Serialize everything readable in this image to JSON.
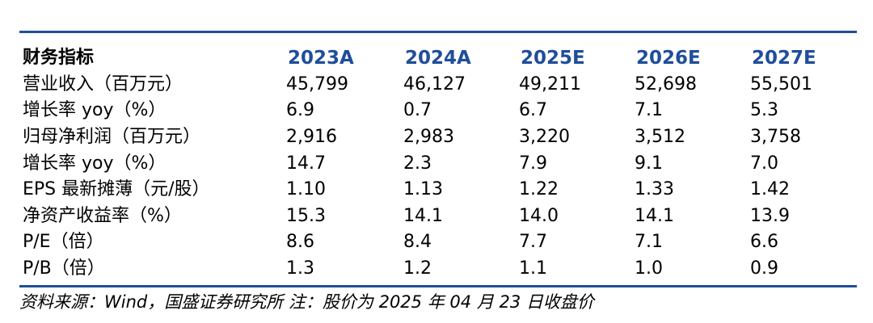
{
  "table": {
    "header": {
      "label": "财务指标",
      "years": [
        "2023A",
        "2024A",
        "2025E",
        "2026E",
        "2027E"
      ]
    },
    "rows": [
      {
        "label": "营业收入（百万元）",
        "values": [
          "45,799",
          "46,127",
          "49,211",
          "52,698",
          "55,501"
        ]
      },
      {
        "label": "增长率 yoy（%）",
        "values": [
          "6.9",
          "0.7",
          "6.7",
          "7.1",
          "5.3"
        ]
      },
      {
        "label": "归母净利润（百万元）",
        "values": [
          "2,916",
          "2,983",
          "3,220",
          "3,512",
          "3,758"
        ]
      },
      {
        "label": "增长率 yoy（%）",
        "values": [
          "14.7",
          "2.3",
          "7.9",
          "9.1",
          "7.0"
        ]
      },
      {
        "label": "EPS 最新摊薄（元/股）",
        "values": [
          "1.10",
          "1.13",
          "1.22",
          "1.33",
          "1.42"
        ]
      },
      {
        "label": "净资产收益率（%）",
        "values": [
          "15.3",
          "14.1",
          "14.0",
          "14.1",
          "13.9"
        ]
      },
      {
        "label": "P/E（倍）",
        "values": [
          "8.6",
          "8.4",
          "7.7",
          "7.1",
          "6.6"
        ]
      },
      {
        "label": "P/B（倍）",
        "values": [
          "1.3",
          "1.2",
          "1.1",
          "1.0",
          "0.9"
        ]
      }
    ]
  },
  "footnote": "资料来源：Wind，国盛证券研究所   注：股价为 2025 年 04 月 23 日收盘价",
  "colors": {
    "accent": "#1f4e9b",
    "text": "#000000"
  }
}
